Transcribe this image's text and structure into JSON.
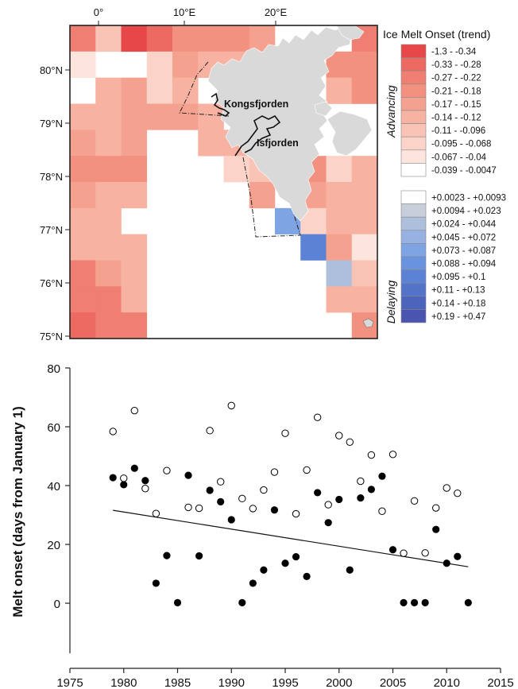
{
  "chart_data": [
    {
      "type": "heatmap",
      "title": "",
      "x_tick_labels": [
        "0°",
        "10°E",
        "20°E"
      ],
      "y_tick_labels": [
        "80°N",
        "79°N",
        "78°N",
        "77°N",
        "76°N",
        "75°N"
      ],
      "place_labels": [
        "Kongsfjorden",
        "Isfjorden"
      ],
      "legend": {
        "title": "Ice Melt Onset (trend)",
        "advancing_label": "Advancing",
        "delaying_label": "Delaying",
        "advancing": [
          {
            "label": "-1.3 - -0.34",
            "color": "#e8474a"
          },
          {
            "label": "-0.33 - -0.28",
            "color": "#ec6a62"
          },
          {
            "label": "-0.27 - -0.22",
            "color": "#ef7f72"
          },
          {
            "label": "-0.21 - -0.18",
            "color": "#f29180"
          },
          {
            "label": "-0.17 - -0.15",
            "color": "#f5a190"
          },
          {
            "label": "-0.14 - -0.12",
            "color": "#f7b2a2"
          },
          {
            "label": "-0.11 - -0.096",
            "color": "#f9c3b5"
          },
          {
            "label": "-0.095 - -0.068",
            "color": "#fbd3c8"
          },
          {
            "label": "-0.067 - -0.04",
            "color": "#fde4dd"
          },
          {
            "label": "-0.039 - -0.0047",
            "color": "#ffffff"
          }
        ],
        "delaying": [
          {
            "label": "+0.0023 - +0.0093",
            "color": "#ffffff"
          },
          {
            "label": "+0.0094 - +0.023",
            "color": "#c8cfdb"
          },
          {
            "label": "+0.024 - +0.044",
            "color": "#aebfdc"
          },
          {
            "label": "+0.045 - +0.072",
            "color": "#97b2e2"
          },
          {
            "label": "+0.073 - +0.087",
            "color": "#7ea4e4"
          },
          {
            "label": "+0.088 - +0.094",
            "color": "#6a93df"
          },
          {
            "label": "+0.095 - +0.1",
            "color": "#5c82d6"
          },
          {
            "label": "+0.11 - +0.13",
            "color": "#5373c9"
          },
          {
            "label": "+0.14 - +0.18",
            "color": "#4d64bd"
          },
          {
            "label": "+0.19 - +0.47",
            "color": "#4a55b0"
          }
        ]
      },
      "land_color": "#d9d9d9",
      "grid_cols": 12,
      "grid_rows": 12,
      "cells": [
        [
          3,
          7,
          1,
          2,
          4,
          4,
          4,
          5,
          0,
          0,
          0,
          3
        ],
        [
          9,
          0,
          0,
          8,
          5,
          6,
          6,
          0,
          0,
          0,
          4,
          4
        ],
        [
          0,
          6,
          5,
          8,
          6,
          0,
          0,
          0,
          0,
          0,
          6,
          4
        ],
        [
          6,
          6,
          5,
          5,
          5,
          6,
          0,
          0,
          0,
          0,
          0,
          0
        ],
        [
          5,
          6,
          5,
          0,
          0,
          6,
          6,
          0,
          0,
          0,
          0,
          0
        ],
        [
          4,
          4,
          4,
          0,
          0,
          0,
          8,
          7,
          0,
          4,
          8,
          6
        ],
        [
          5,
          6,
          6,
          0,
          0,
          0,
          0,
          5,
          0,
          5,
          6,
          6
        ],
        [
          6,
          6,
          0,
          0,
          0,
          0,
          0,
          0,
          13,
          8,
          6,
          6
        ],
        [
          6,
          6,
          6,
          0,
          0,
          0,
          0,
          0,
          0,
          15,
          5,
          9
        ],
        [
          3,
          5,
          6,
          0,
          0,
          0,
          0,
          0,
          0,
          0,
          11,
          7
        ],
        [
          3,
          3,
          6,
          0,
          0,
          0,
          0,
          0,
          0,
          0,
          6,
          6
        ],
        [
          2,
          3,
          3,
          0,
          0,
          0,
          0,
          0,
          0,
          0,
          0,
          4
        ]
      ]
    },
    {
      "type": "scatter",
      "xlabel": "",
      "ylabel": "Melt onset (days from January 1)",
      "xlim": [
        1975,
        2015
      ],
      "ylim": [
        -17,
        80
      ],
      "x_ticks": [
        1975,
        1980,
        1985,
        1990,
        1995,
        2000,
        2005,
        2010,
        2015
      ],
      "y_ticks": [
        0,
        20,
        40,
        60,
        80
      ],
      "series": [
        {
          "marker": "filled",
          "points": [
            [
              1979,
              42.7
            ],
            [
              1980,
              40.3
            ],
            [
              1981,
              45.9
            ],
            [
              1982,
              41.7
            ],
            [
              1983,
              6.8
            ],
            [
              1984,
              16.2
            ],
            [
              1985,
              0.2
            ],
            [
              1986,
              43.5
            ],
            [
              1987,
              16.1
            ],
            [
              1988,
              38.4
            ],
            [
              1989,
              34.5
            ],
            [
              1990,
              28.4
            ],
            [
              1991,
              0.2
            ],
            [
              1992,
              6.8
            ],
            [
              1993,
              11.3
            ],
            [
              1994,
              31.7
            ],
            [
              1995,
              13.6
            ],
            [
              1996,
              15.8
            ],
            [
              1997,
              9.1
            ],
            [
              1998,
              37.6
            ],
            [
              1999,
              27.4
            ],
            [
              2000,
              35.3
            ],
            [
              2001,
              11.3
            ],
            [
              2002,
              35.8
            ],
            [
              2003,
              38.7
            ],
            [
              2004,
              43.2
            ],
            [
              2005,
              18.2
            ],
            [
              2006,
              0.2
            ],
            [
              2007,
              0.2
            ],
            [
              2008,
              0.2
            ],
            [
              2009,
              25.1
            ],
            [
              2010,
              13.6
            ],
            [
              2011,
              15.9
            ],
            [
              2012,
              0.2
            ]
          ]
        },
        {
          "marker": "open",
          "points": [
            [
              1979,
              58.4
            ],
            [
              1980,
              42.5
            ],
            [
              1981,
              65.5
            ],
            [
              1982,
              39.0
            ],
            [
              1983,
              30.5
            ],
            [
              1984,
              45.1
            ],
            [
              1986,
              32.6
            ],
            [
              1987,
              32.3
            ],
            [
              1988,
              58.7
            ],
            [
              1989,
              41.3
            ],
            [
              1990,
              67.2
            ],
            [
              1991,
              35.6
            ],
            [
              1992,
              32.2
            ],
            [
              1993,
              38.5
            ],
            [
              1994,
              44.6
            ],
            [
              1995,
              57.8
            ],
            [
              1996,
              30.4
            ],
            [
              1997,
              45.3
            ],
            [
              1998,
              63.2
            ],
            [
              1999,
              33.5
            ],
            [
              2000,
              57.0
            ],
            [
              2001,
              54.8
            ],
            [
              2002,
              41.5
            ],
            [
              2003,
              50.4
            ],
            [
              2004,
              31.3
            ],
            [
              2005,
              50.6
            ],
            [
              2006,
              17.0
            ],
            [
              2007,
              34.8
            ],
            [
              2008,
              17.1
            ],
            [
              2009,
              32.4
            ],
            [
              2010,
              39.2
            ],
            [
              2011,
              37.4
            ]
          ]
        }
      ],
      "trend_line": {
        "x": [
          1979,
          2012
        ],
        "y": [
          31.6,
          12.4
        ]
      }
    }
  ]
}
